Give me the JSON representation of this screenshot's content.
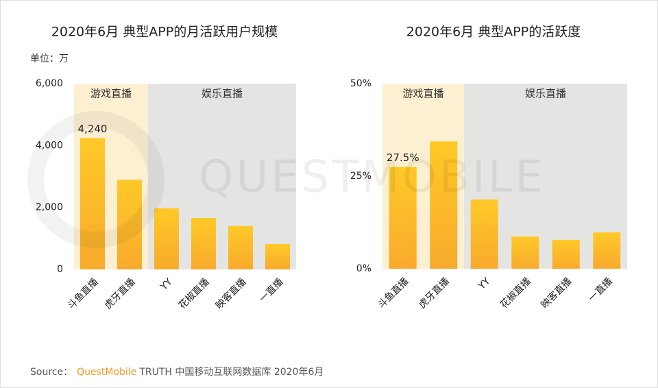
{
  "watermark": "QUESTMOBILE",
  "footer": {
    "prefix": "Source：",
    "brand": "QuestMobile",
    "brand_color": "#f39a1e",
    "rest": "TRUTH 中国移动互联网数据库 2020年6月"
  },
  "chart_data": [
    {
      "type": "bar",
      "title": "2020年6月 典型APP的月活跃用户规模",
      "unit_label": "单位：万",
      "categories": [
        "斗鱼直播",
        "虎牙直播",
        "YY",
        "花椒直播",
        "映客直播",
        "一直播"
      ],
      "values": [
        4240,
        2900,
        1970,
        1660,
        1400,
        820
      ],
      "value_labels": [
        "4,240",
        null,
        null,
        null,
        null,
        null
      ],
      "gradient": [
        "#ffc928",
        "#f8aa2c"
      ],
      "sections": [
        {
          "label": "游戏直播",
          "color": "#fdf0d2",
          "categories": [
            "斗鱼直播",
            "虎牙直播"
          ]
        },
        {
          "label": "娱乐直播",
          "color": "#e4e4e3",
          "categories": [
            "YY",
            "花椒直播",
            "映客直播",
            "一直播"
          ]
        }
      ],
      "ylim": [
        0,
        6000
      ],
      "yticks": [
        0,
        {
          "value": 2000,
          "label": "2,000"
        },
        {
          "value": 4000,
          "label": "4,000"
        },
        {
          "value": 6000,
          "label": "6,000"
        }
      ]
    },
    {
      "type": "bar",
      "title": "2020年6月 典型APP的活跃度",
      "categories": [
        "斗鱼直播",
        "虎牙直播",
        "YY",
        "花椒直播",
        "映客直播",
        "一直播"
      ],
      "values": [
        27.5,
        34.4,
        18.7,
        8.7,
        7.8,
        9.8
      ],
      "value_labels": [
        "27.5%",
        null,
        null,
        null,
        null,
        null
      ],
      "gradient": [
        "#ffc928",
        "#f8aa2c"
      ],
      "sections": [
        {
          "label": "游戏直播",
          "color": "#fdf0d2",
          "categories": [
            "斗鱼直播",
            "虎牙直播"
          ]
        },
        {
          "label": "娱乐直播",
          "color": "#e4e4e3",
          "categories": [
            "YY",
            "花椒直播",
            "映客直播",
            "一直播"
          ]
        }
      ],
      "ylim": [
        0,
        50
      ],
      "yticks": [
        {
          "value": 0,
          "label": "0%"
        },
        {
          "value": 25,
          "label": "25%"
        },
        {
          "value": 50,
          "label": "50%"
        }
      ]
    }
  ]
}
